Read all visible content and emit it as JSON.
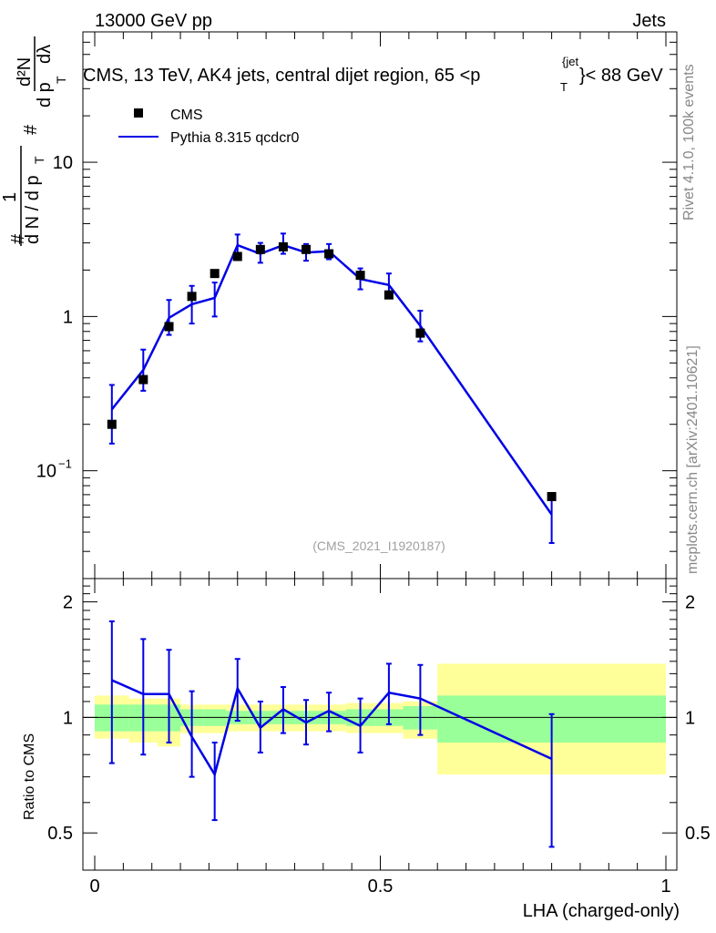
{
  "header": {
    "left": "13000 GeV pp",
    "right": "Jets"
  },
  "side_labels": {
    "rivet": "Rivet 4.1.0,  100k events",
    "mcplots": "mcplots.cern.ch [arXiv:2401.10621]"
  },
  "colors": {
    "data_marker": "#000000",
    "mc_line": "#0000e6",
    "band_inner": "#99ff99",
    "band_outer": "#ffff99"
  },
  "chart_data": {
    "type": "line",
    "title_main": "CMS, 13 TeV, AK4 jets, central dijet region, 65 <p",
    "title_sup": "{jet",
    "title_sub": "T",
    "title_end": "}< 88 GeV",
    "analysis_tag": "(CMS_2021_I1920187)",
    "xlabel": "LHA (charged-only)",
    "xlim": [
      0,
      1
    ],
    "x_ticks": [
      "0",
      "0.5",
      "1"
    ],
    "x_tick_values": [
      0,
      0.5,
      1
    ],
    "main_panel": {
      "yscale": "log",
      "ylim": [
        0.02,
        70
      ],
      "y_ticks": [
        {
          "value": 10,
          "label": "10"
        },
        {
          "value": 1,
          "label": "1"
        },
        {
          "value": 0.1,
          "label": "10",
          "sup": "−1"
        }
      ],
      "ylabel": {
        "hash1": "#",
        "one": "1",
        "dN": "d N / d p",
        "T1": "T",
        "hash2": "#",
        "d2N": "d²N",
        "dp": "d p",
        "T2": "T",
        "dlambda": "dλ"
      }
    },
    "ratio_panel": {
      "ylabel": "Ratio to CMS",
      "ylim": [
        0.4,
        2.3
      ],
      "y_ticks": [
        {
          "value": 0.5,
          "label": "0.5"
        },
        {
          "value": 1,
          "label": "1"
        },
        {
          "value": 2,
          "label": "2"
        }
      ]
    },
    "legend": [
      {
        "label": "CMS",
        "kind": "marker"
      },
      {
        "label": "Pythia 8.315 qcdcr0",
        "kind": "line"
      }
    ],
    "bin_edges": [
      0,
      0.06,
      0.11,
      0.15,
      0.19,
      0.23,
      0.27,
      0.31,
      0.35,
      0.39,
      0.44,
      0.49,
      0.54,
      0.6,
      1.0
    ],
    "data": {
      "name": "CMS",
      "x": [
        0.03,
        0.085,
        0.13,
        0.17,
        0.21,
        0.25,
        0.29,
        0.33,
        0.37,
        0.41,
        0.465,
        0.515,
        0.57,
        0.8
      ],
      "y": [
        0.2,
        0.39,
        0.86,
        1.35,
        1.9,
        2.45,
        2.72,
        2.83,
        2.72,
        2.55,
        1.85,
        1.38,
        0.78,
        0.068
      ]
    },
    "mc": {
      "name": "Pythia 8.315 qcdcr0",
      "x": [
        0.03,
        0.085,
        0.13,
        0.17,
        0.21,
        0.25,
        0.29,
        0.33,
        0.37,
        0.41,
        0.465,
        0.515,
        0.57,
        0.8
      ],
      "y": [
        0.25,
        0.45,
        0.98,
        1.2,
        1.32,
        2.9,
        2.55,
        2.9,
        2.6,
        2.65,
        1.75,
        1.6,
        0.87,
        0.052
      ],
      "err_lo": [
        0.1,
        0.12,
        0.22,
        0.3,
        0.32,
        0.45,
        0.32,
        0.35,
        0.3,
        0.3,
        0.25,
        0.25,
        0.18,
        0.018
      ],
      "err_hi": [
        0.11,
        0.16,
        0.3,
        0.38,
        0.34,
        0.5,
        0.45,
        0.55,
        0.35,
        0.3,
        0.3,
        0.3,
        0.22,
        0.016
      ]
    },
    "ratio": {
      "y": [
        1.25,
        1.15,
        1.15,
        0.89,
        0.71,
        1.19,
        0.94,
        1.05,
        0.97,
        1.04,
        0.95,
        1.16,
        1.12,
        0.78
      ],
      "err_lo": [
        0.49,
        0.35,
        0.29,
        0.19,
        0.17,
        0.21,
        0.13,
        0.14,
        0.12,
        0.12,
        0.14,
        0.2,
        0.22,
        0.32
      ],
      "err_hi": [
        0.53,
        0.45,
        0.35,
        0.28,
        0.15,
        0.23,
        0.16,
        0.15,
        0.14,
        0.12,
        0.17,
        0.22,
        0.25,
        0.24
      ],
      "band_inner_lo": [
        0.92,
        0.92,
        0.92,
        0.95,
        0.95,
        0.96,
        0.96,
        0.96,
        0.96,
        0.96,
        0.95,
        0.95,
        0.93,
        0.86
      ],
      "band_inner_hi": [
        1.08,
        1.08,
        1.08,
        1.05,
        1.05,
        1.04,
        1.04,
        1.04,
        1.04,
        1.04,
        1.05,
        1.05,
        1.07,
        1.14
      ],
      "band_outer_lo": [
        0.88,
        0.86,
        0.84,
        0.91,
        0.91,
        0.92,
        0.92,
        0.92,
        0.92,
        0.92,
        0.91,
        0.91,
        0.88,
        0.71
      ],
      "band_outer_hi": [
        1.14,
        1.12,
        1.12,
        1.08,
        1.08,
        1.08,
        1.08,
        1.08,
        1.08,
        1.08,
        1.09,
        1.09,
        1.1,
        1.38
      ]
    }
  }
}
